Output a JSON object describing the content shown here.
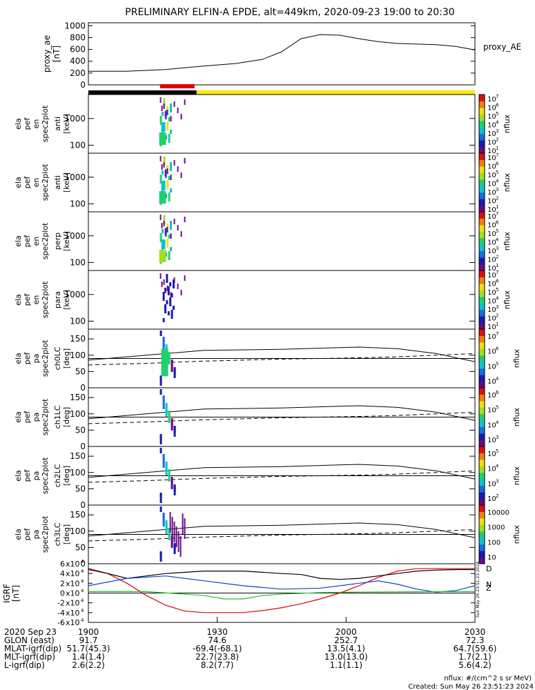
{
  "title": "PRELIMINARY ELFIN-A EPDE, alt=449km, 2020-09-23 19:00 to 20:30",
  "colors": {
    "black": "#000000",
    "yellow": "#ffe800",
    "red": "#e00000",
    "blue": "#1040d0",
    "green": "#20c020"
  },
  "ae_panel": {
    "ylabel": "proxy_ae",
    "yunit": "[nT]",
    "legend": "proxy_AE",
    "ticks": [
      "1000",
      "800",
      "600",
      "400",
      "200",
      "0"
    ]
  },
  "spectrum_panels": [
    {
      "ylabel": [
        "ela",
        "pef",
        "en",
        "spec2plot"
      ],
      "ylabel2": "anti",
      "yunit": "[keV]",
      "ticks": [
        "1000",
        "100"
      ],
      "cbar_ticks": [
        "10",
        "10",
        "10",
        "10",
        "10",
        "10",
        "10"
      ],
      "cbar_exp": [
        "7",
        "6",
        "5",
        "4",
        "3",
        "2",
        "1"
      ],
      "cbar_label": "nflux"
    },
    {
      "ylabel": [
        "ela",
        "pef",
        "en",
        "spec2plot"
      ],
      "ylabel2": "anti",
      "yunit": "[keV]",
      "ticks": [
        "1000",
        "100"
      ],
      "cbar_ticks": [
        "10",
        "10",
        "10",
        "10",
        "10",
        "10",
        "10"
      ],
      "cbar_exp": [
        "7",
        "6",
        "5",
        "4",
        "3",
        "2",
        "1"
      ],
      "cbar_label": "nflux"
    },
    {
      "ylabel": [
        "ela",
        "pef",
        "en",
        "spec2plot"
      ],
      "ylabel2": "perp",
      "yunit": "[keV]",
      "ticks": [
        "1000",
        "100"
      ],
      "cbar_ticks": [
        "10",
        "10",
        "10",
        "10",
        "10",
        "10",
        "10"
      ],
      "cbar_exp": [
        "7",
        "6",
        "5",
        "4",
        "3",
        "2",
        "1"
      ],
      "cbar_label": "nflux"
    },
    {
      "ylabel": [
        "ela",
        "pef",
        "en",
        "spec2plot"
      ],
      "ylabel2": "para",
      "yunit": "[keV]",
      "ticks": [
        "1000",
        "100"
      ],
      "cbar_ticks": [
        "10",
        "10",
        "10",
        "10",
        "10",
        "10",
        "10"
      ],
      "cbar_exp": [
        "7",
        "6",
        "5",
        "4",
        "3",
        "2",
        "1"
      ],
      "cbar_label": "nflux"
    }
  ],
  "pitch_panels": [
    {
      "ylabel": [
        "ela",
        "pef",
        "pa",
        "spec2plot"
      ],
      "ylabel2": "ch0LC",
      "yunit": "[deg]",
      "ticks": [
        "150",
        "100",
        "50",
        "0"
      ],
      "cbar_ticks": [
        "10",
        "10",
        "10",
        "10"
      ],
      "cbar_exp": [
        "7",
        "6",
        "5",
        "4"
      ],
      "cbar_label": "nflux"
    },
    {
      "ylabel": [
        "ela",
        "pef",
        "pa",
        "spec2plot"
      ],
      "ylabel2": "ch1LC",
      "yunit": "[deg]",
      "ticks": [
        "150",
        "100",
        "50",
        "0"
      ],
      "cbar_ticks": [
        "10",
        "10",
        "10",
        "10"
      ],
      "cbar_exp": [
        "6",
        "5",
        "4",
        "3"
      ],
      "cbar_label": "nflux"
    },
    {
      "ylabel": [
        "ela",
        "pef",
        "pa",
        "spec2plot"
      ],
      "ylabel2": "ch2LC",
      "yunit": "[deg]",
      "ticks": [
        "150",
        "100",
        "50",
        "0"
      ],
      "cbar_ticks": [
        "10",
        "10",
        "10",
        "10"
      ],
      "cbar_exp": [
        "5",
        "4",
        "3",
        "2"
      ],
      "cbar_label": "nflux"
    },
    {
      "ylabel": [
        "ela",
        "pef",
        "pa",
        "spec2plot"
      ],
      "ylabel2": "ch3LC",
      "yunit": "[deg]",
      "ticks": [
        "150",
        "100",
        "50",
        "0"
      ],
      "cbar_ticks": [
        "10000",
        "1000",
        "100",
        "10"
      ],
      "cbar_exp": [
        "",
        "",
        "",
        ""
      ],
      "cbar_label": "nflux"
    }
  ],
  "igrf_panel": {
    "ylabel": "IGRF",
    "yunit": "[nT]",
    "ticks": [
      "6",
      "4",
      "2",
      "0",
      "-2",
      "-4",
      "-6"
    ],
    "tick_base": "x10",
    "tick_exp": "4",
    "legend": [
      "D",
      "N",
      "Z"
    ],
    "side_text": "Sun May 26 23:51:23 2024"
  },
  "xaxis": {
    "ticks": [
      "1900",
      "1930",
      "2000",
      "2030"
    ],
    "rows": [
      {
        "label": "2020 Sep 23",
        "values": [
          "",
          "",
          "",
          ""
        ]
      },
      {
        "label": "GLON (east)",
        "values": [
          "91.7",
          "74.6",
          "252.7",
          "72.3"
        ]
      },
      {
        "label": "MLAT-igrf(dip)",
        "values": [
          "51.7(45.3)",
          "-69.4(-68.1)",
          "13.5(4.1)",
          "64.7(59.6)"
        ]
      },
      {
        "label": "MLT-igrf(dip)",
        "values": [
          "1.4(1.4)",
          "22.7(23.8)",
          "13.0(13.0)",
          "1.7(2.1)"
        ]
      },
      {
        "label": "L-igrf(dip)",
        "values": [
          "2.6(2.2)",
          "8.2(7.7)",
          "1.1(1.1)",
          "5.6(4.2)"
        ]
      }
    ]
  },
  "footer": {
    "line1": "nflux: #/(cm^2 s sr MeV)",
    "line2": "Created: Sun May 26 23:51:23 2024"
  },
  "chart_data": {
    "type": "line",
    "title": "PRELIMINARY ELFIN-A EPDE, alt=449km, 2020-09-23 19:00 to 20:30",
    "x_range": [
      "19:00",
      "20:30"
    ],
    "x_ticks": [
      "1900",
      "1930",
      "2000",
      "2030"
    ],
    "status_bar": [
      {
        "from": 0,
        "to": 0.28,
        "color": "black"
      },
      {
        "from": 0.28,
        "to": 1.0,
        "color": "yellow"
      }
    ],
    "science_zone": {
      "from": 0.18,
      "to": 0.28,
      "color": "red"
    },
    "series": [
      {
        "name": "proxy_AE",
        "panel": "ae",
        "x": [
          0,
          0.1,
          0.2,
          0.3,
          0.38,
          0.45,
          0.5,
          0.55,
          0.6,
          0.65,
          0.7,
          0.75,
          0.8,
          0.85,
          0.9,
          0.95,
          1.0
        ],
        "y": [
          230,
          230,
          260,
          320,
          360,
          430,
          560,
          780,
          850,
          840,
          780,
          730,
          700,
          690,
          680,
          650,
          590
        ]
      },
      {
        "name": "D",
        "panel": "igrf",
        "x": [
          0,
          0.05,
          0.1,
          0.15,
          0.2,
          0.25,
          0.3,
          0.35,
          0.4,
          0.45,
          0.5,
          0.55,
          0.6,
          0.65,
          0.7,
          0.75,
          0.8,
          0.85,
          0.9,
          0.95,
          1.0
        ],
        "y": [
          48000,
          40000,
          20000,
          -5000,
          -25000,
          -37000,
          -40000,
          -40000,
          -40000,
          -36000,
          -30000,
          -22000,
          -12000,
          0,
          15000,
          32000,
          45000,
          50000,
          50000,
          50000,
          50000
        ]
      },
      {
        "name": "Z",
        "panel": "igrf",
        "x": [
          0,
          0.1,
          0.2,
          0.3,
          0.4,
          0.5,
          0.55,
          0.6,
          0.65,
          0.7,
          0.75,
          0.8,
          0.85,
          0.9,
          0.95,
          1.0
        ],
        "y": [
          50000,
          30000,
          40000,
          45000,
          45000,
          40000,
          38000,
          30000,
          28000,
          30000,
          35000,
          40000,
          45000,
          47000,
          48000,
          48000
        ]
      },
      {
        "name": "N",
        "panel": "igrf",
        "x": [
          0,
          0.1,
          0.2,
          0.3,
          0.4,
          0.5,
          0.6,
          0.7,
          0.75,
          0.8,
          0.85,
          0.9,
          0.95,
          1.0
        ],
        "y": [
          15000,
          30000,
          35000,
          25000,
          15000,
          8000,
          10000,
          20000,
          25000,
          18000,
          8000,
          2000,
          5000,
          15000
        ]
      },
      {
        "name": "Green",
        "panel": "igrf",
        "x": [
          0,
          0.15,
          0.3,
          0.35,
          0.4,
          0.45,
          0.5,
          0.6,
          0.7,
          0.8,
          0.9,
          1.0
        ],
        "y": [
          3000,
          3000,
          -5000,
          -12000,
          -12000,
          -5000,
          -2000,
          1000,
          2000,
          2500,
          3000,
          3000
        ]
      }
    ],
    "igrf_ylim": [
      -60000,
      60000
    ],
    "ae_ylim": [
      0,
      1050
    ],
    "pitch_ylim": [
      0,
      180
    ],
    "pitch_solid": {
      "x": [
        0,
        0.15,
        0.3,
        0.5,
        0.7,
        0.8,
        0.9,
        1.0
      ],
      "y": [
        85,
        100,
        115,
        118,
        125,
        120,
        105,
        80
      ]
    },
    "pitch_dashed": {
      "x": [
        0,
        0.15,
        0.3,
        0.5,
        0.7,
        0.8,
        0.9,
        1.0
      ],
      "y": [
        70,
        75,
        82,
        88,
        92,
        95,
        100,
        105
      ]
    },
    "burst_x": [
      0.185,
      0.215
    ],
    "energy_ylim_log": [
      1.7,
      3.9
    ]
  }
}
